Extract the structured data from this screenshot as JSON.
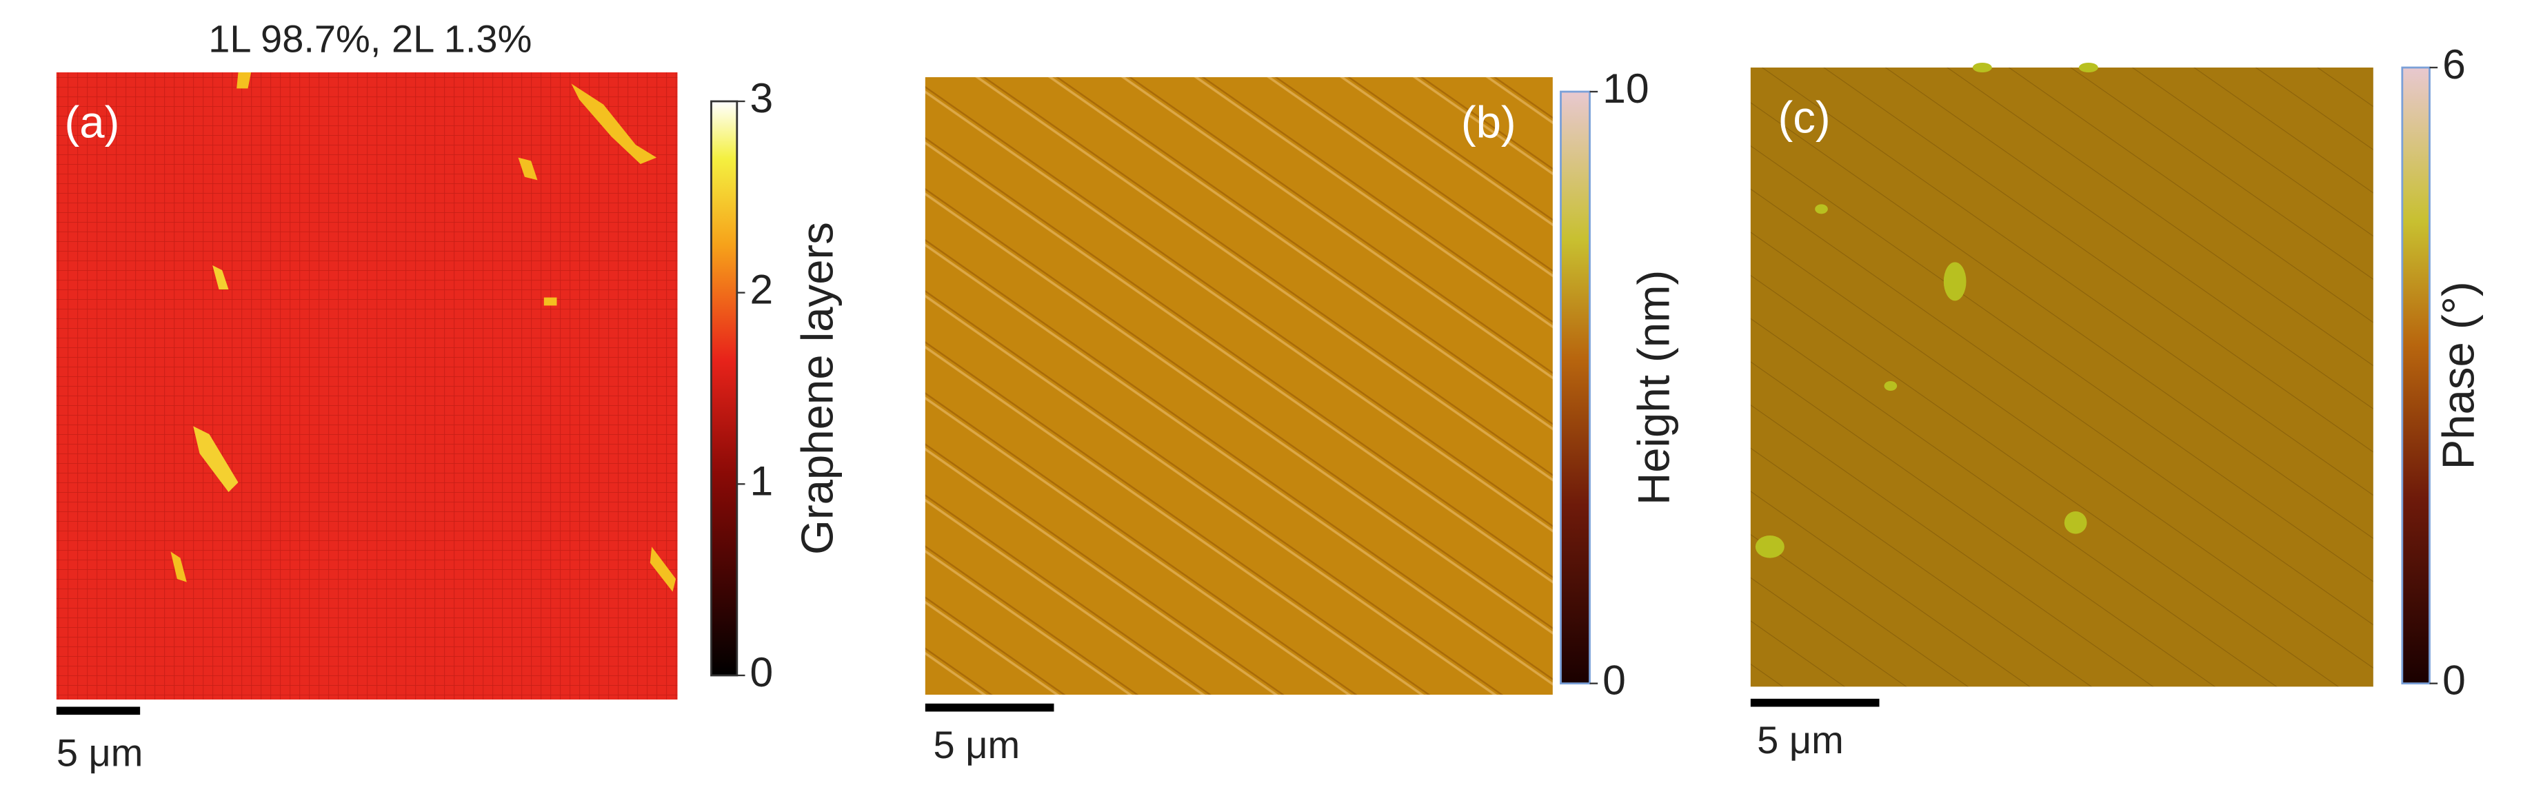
{
  "panels": [
    {
      "label": "(a)",
      "title": "1L 98.7%, 2L 1.3%",
      "scale_bar": "5 μm",
      "colorbar": {
        "label": "Graphene layers",
        "lim": [
          0,
          3
        ],
        "ticks": [
          0,
          1,
          2,
          3
        ]
      }
    },
    {
      "label": "(b)",
      "scale_bar": "5 μm",
      "colorbar": {
        "label": "Height (nm)",
        "lim": [
          0,
          10
        ],
        "ticks": [
          0,
          10
        ]
      }
    },
    {
      "label": "(c)",
      "scale_bar": "5 μm",
      "colorbar": {
        "label": "Phase (°)",
        "lim": [
          0,
          6
        ],
        "ticks": [
          0,
          6
        ]
      }
    }
  ]
}
